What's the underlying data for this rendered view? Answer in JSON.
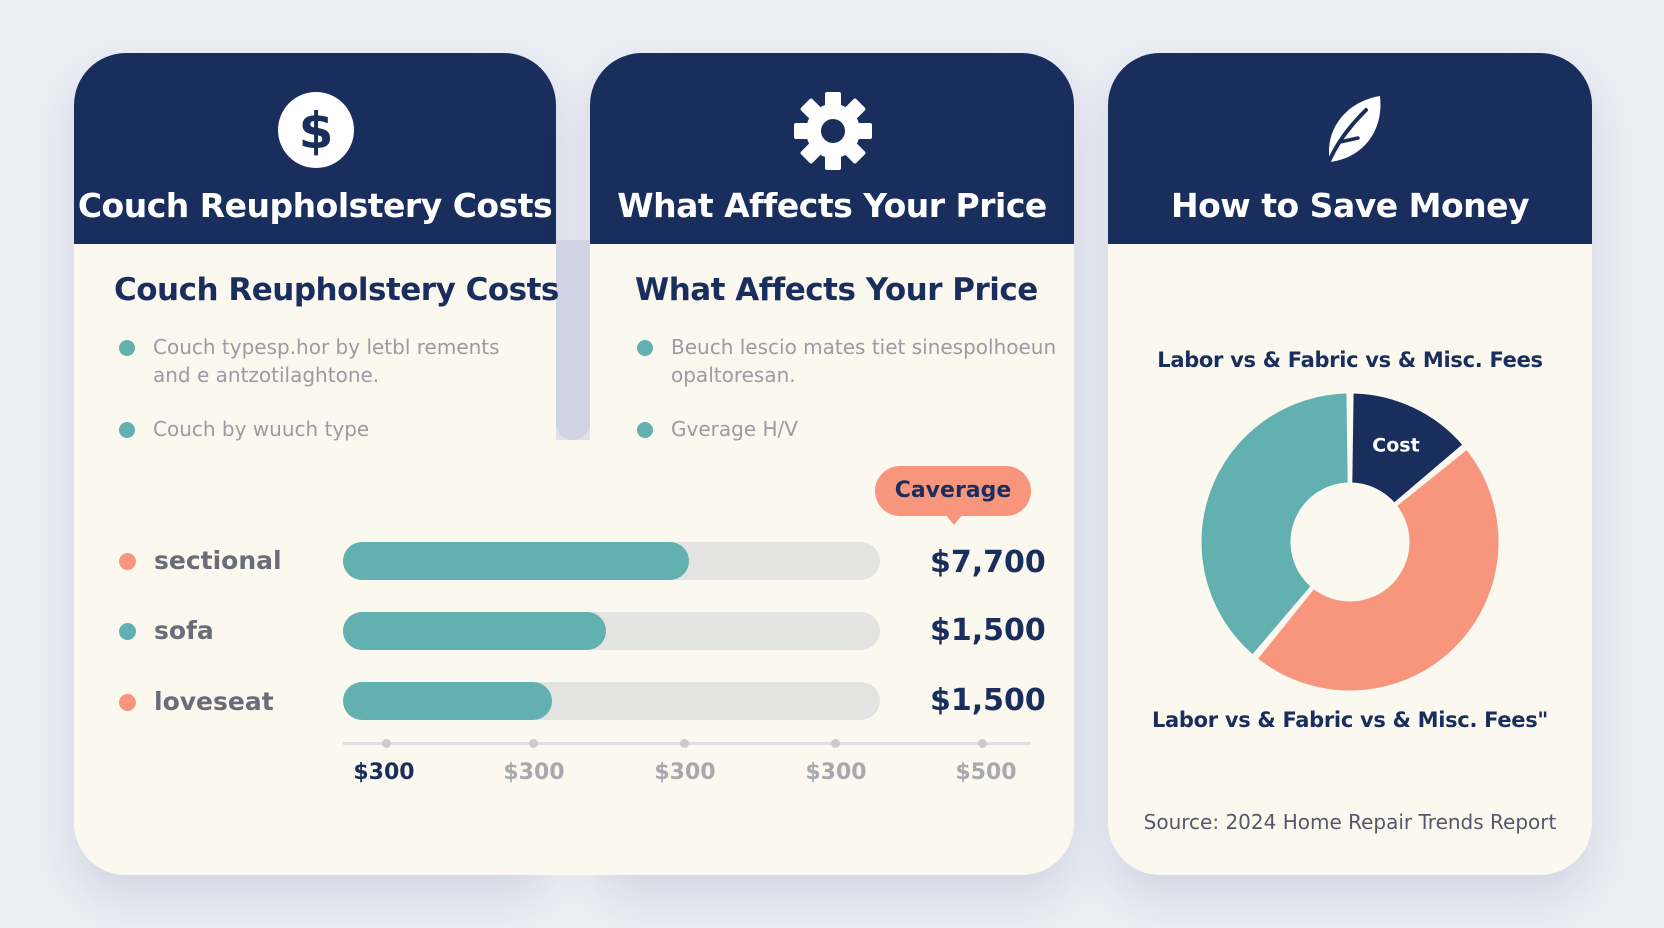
{
  "cards": [
    {
      "header_title": "Couch Reupholstery Costs",
      "icon": "dollar-icon",
      "subtitle": "Couch Reupholstery Costs",
      "bullets": [
        {
          "line1": "Couch typesp.hor by letbl rements",
          "line2": "and e antzotilaghtone."
        },
        {
          "line1": "Couch by wuuch type",
          "line2": ""
        }
      ]
    },
    {
      "header_title": "What Affects Your Price",
      "icon": "gear-icon",
      "subtitle": "What Affects Your Price",
      "bullets": [
        {
          "line1": "Beuch lescio mates tiet sinespolhoeun",
          "line2": "opaltoresan."
        },
        {
          "line1": "Gverage H/V",
          "line2": ""
        }
      ]
    },
    {
      "header_title": "How to Save Money",
      "icon": "leaf-icon"
    }
  ],
  "colors": {
    "navy": "#1a2e5e",
    "teal": "#62b0b0",
    "coral": "#f8967d",
    "card": "#fbf8ef"
  },
  "callout": "Caverage",
  "chart_data": [
    {
      "type": "bar",
      "orientation": "horizontal",
      "categories": [
        "sectional",
        "sofa",
        "loveseat"
      ],
      "values": [
        7700,
        1500,
        1500
      ],
      "value_labels": [
        "$7,700",
        "$1,500",
        "$1,500"
      ],
      "bar_fill_fraction": [
        0.645,
        0.49,
        0.39
      ],
      "marker_colors": [
        "#f8967d",
        "#62b0b0",
        "#f8967d"
      ],
      "x_tick_labels": [
        "$300",
        "$300",
        "$300",
        "$300",
        "$500"
      ],
      "xlabel": "",
      "ylabel": ""
    },
    {
      "type": "pie",
      "donut": true,
      "title": "Labor vs & Fabric vs & Misc. Fees",
      "caption": "Labor vs & Fabric vs & Misc. Fees\"",
      "slices": [
        {
          "label": "Cost",
          "value": 14,
          "color": "#1a2e5e"
        },
        {
          "label": "",
          "value": 47,
          "color": "#f8967d"
        },
        {
          "label": "",
          "value": 39,
          "color": "#62b0b0"
        }
      ]
    }
  ],
  "source": "Source: 2024 Home Repair Trends Report"
}
